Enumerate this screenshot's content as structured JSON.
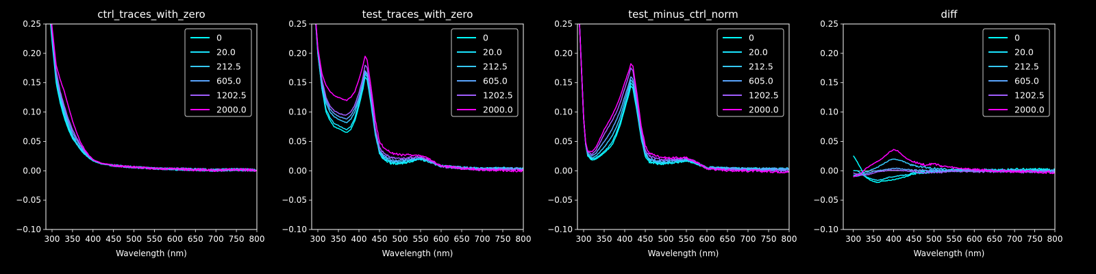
{
  "figure": {
    "background": "#000000",
    "foreground": "#ffffff"
  },
  "chart_data": [
    {
      "type": "line",
      "title": "ctrl_traces_with_zero",
      "xlabel": "Wavelength (nm)",
      "ylabel": "",
      "xlim": [
        285,
        800
      ],
      "ylim": [
        -0.1,
        0.25
      ],
      "xticks": [
        "300",
        "350",
        "400",
        "450",
        "500",
        "550",
        "600",
        "650",
        "700",
        "750",
        "800"
      ],
      "yticks": [
        "−0.10",
        "−0.05",
        "0.00",
        "0.05",
        "0.10",
        "0.15",
        "0.20",
        "0.25"
      ],
      "legend_position": "top-right",
      "x": [
        285,
        300,
        310,
        320,
        330,
        340,
        350,
        360,
        370,
        380,
        390,
        400,
        420,
        450,
        500,
        550,
        600,
        650,
        700,
        750,
        800
      ],
      "series": [
        {
          "name": "0",
          "color": "#00ffff",
          "values": [
            0.35,
            0.22,
            0.15,
            0.115,
            0.09,
            0.07,
            0.055,
            0.045,
            0.035,
            0.028,
            0.022,
            0.017,
            0.012,
            0.009,
            0.006,
            0.004,
            0.003,
            0.002,
            0.001,
            0.002,
            0.001
          ]
        },
        {
          "name": "20.0",
          "color": "#1ae5ff",
          "values": [
            0.35,
            0.225,
            0.155,
            0.12,
            0.095,
            0.073,
            0.057,
            0.046,
            0.036,
            0.029,
            0.022,
            0.017,
            0.012,
            0.009,
            0.006,
            0.004,
            0.003,
            0.002,
            0.001,
            0.002,
            0.001
          ]
        },
        {
          "name": "212.5",
          "color": "#36c9ff",
          "values": [
            0.35,
            0.23,
            0.16,
            0.125,
            0.1,
            0.078,
            0.06,
            0.048,
            0.038,
            0.03,
            0.023,
            0.018,
            0.012,
            0.009,
            0.006,
            0.004,
            0.003,
            0.002,
            0.001,
            0.002,
            0.001
          ]
        },
        {
          "name": "605.0",
          "color": "#5aa5ff",
          "values": [
            0.35,
            0.235,
            0.165,
            0.13,
            0.105,
            0.083,
            0.065,
            0.052,
            0.041,
            0.032,
            0.024,
            0.018,
            0.012,
            0.009,
            0.006,
            0.004,
            0.003,
            0.002,
            0.001,
            0.002,
            0.001
          ]
        },
        {
          "name": "1202.5",
          "color": "#a15eff",
          "values": [
            0.35,
            0.24,
            0.17,
            0.135,
            0.11,
            0.088,
            0.07,
            0.056,
            0.044,
            0.034,
            0.025,
            0.019,
            0.013,
            0.009,
            0.006,
            0.004,
            0.003,
            0.002,
            0.001,
            0.002,
            0.001
          ]
        },
        {
          "name": "2000.0",
          "color": "#ff00ff",
          "values": [
            0.35,
            0.245,
            0.18,
            0.155,
            0.135,
            0.11,
            0.085,
            0.065,
            0.048,
            0.036,
            0.026,
            0.019,
            0.013,
            0.009,
            0.006,
            0.004,
            0.003,
            0.002,
            0.001,
            0.002,
            0.001
          ]
        }
      ]
    },
    {
      "type": "line",
      "title": "test_traces_with_zero",
      "xlabel": "Wavelength (nm)",
      "ylabel": "",
      "xlim": [
        285,
        800
      ],
      "ylim": [
        -0.1,
        0.25
      ],
      "xticks": [
        "300",
        "350",
        "400",
        "450",
        "500",
        "550",
        "600",
        "650",
        "700",
        "750",
        "800"
      ],
      "yticks": [
        "−0.10",
        "−0.05",
        "0.00",
        "0.05",
        "0.10",
        "0.15",
        "0.20",
        "0.25"
      ],
      "legend_position": "top-right",
      "x": [
        290,
        300,
        310,
        320,
        330,
        340,
        350,
        360,
        370,
        380,
        390,
        400,
        410,
        415,
        420,
        430,
        440,
        450,
        460,
        480,
        500,
        520,
        550,
        570,
        600,
        650,
        700,
        750,
        800
      ],
      "series": [
        {
          "name": "0",
          "color": "#00ffff",
          "values": [
            0.3,
            0.2,
            0.14,
            0.1,
            0.085,
            0.075,
            0.072,
            0.068,
            0.065,
            0.07,
            0.085,
            0.11,
            0.14,
            0.16,
            0.155,
            0.11,
            0.06,
            0.03,
            0.02,
            0.012,
            0.012,
            0.015,
            0.02,
            0.015,
            0.008,
            0.005,
            0.003,
            0.004,
            0.003
          ]
        },
        {
          "name": "20.0",
          "color": "#1ae5ff",
          "values": [
            0.3,
            0.2,
            0.14,
            0.105,
            0.09,
            0.08,
            0.077,
            0.073,
            0.07,
            0.075,
            0.09,
            0.115,
            0.145,
            0.165,
            0.16,
            0.115,
            0.063,
            0.032,
            0.022,
            0.014,
            0.013,
            0.016,
            0.021,
            0.016,
            0.008,
            0.005,
            0.003,
            0.004,
            0.003
          ]
        },
        {
          "name": "212.5",
          "color": "#36c9ff",
          "values": [
            0.3,
            0.205,
            0.145,
            0.115,
            0.1,
            0.092,
            0.088,
            0.084,
            0.082,
            0.088,
            0.1,
            0.12,
            0.148,
            0.168,
            0.163,
            0.118,
            0.066,
            0.034,
            0.024,
            0.016,
            0.015,
            0.018,
            0.022,
            0.017,
            0.008,
            0.005,
            0.003,
            0.004,
            0.003
          ]
        },
        {
          "name": "605.0",
          "color": "#5aa5ff",
          "values": [
            0.3,
            0.205,
            0.15,
            0.12,
            0.105,
            0.097,
            0.093,
            0.09,
            0.088,
            0.094,
            0.106,
            0.125,
            0.152,
            0.17,
            0.165,
            0.12,
            0.068,
            0.036,
            0.026,
            0.018,
            0.017,
            0.02,
            0.023,
            0.017,
            0.008,
            0.005,
            0.003,
            0.004,
            0.003
          ]
        },
        {
          "name": "1202.5",
          "color": "#a15eff",
          "values": [
            0.3,
            0.21,
            0.155,
            0.125,
            0.11,
            0.102,
            0.098,
            0.096,
            0.095,
            0.1,
            0.112,
            0.132,
            0.16,
            0.18,
            0.175,
            0.128,
            0.072,
            0.04,
            0.03,
            0.022,
            0.02,
            0.022,
            0.024,
            0.018,
            0.008,
            0.004,
            0.002,
            0.002,
            0.001
          ]
        },
        {
          "name": "2000.0",
          "color": "#ff00ff",
          "values": [
            0.3,
            0.21,
            0.165,
            0.145,
            0.135,
            0.128,
            0.125,
            0.122,
            0.12,
            0.125,
            0.135,
            0.155,
            0.18,
            0.195,
            0.188,
            0.14,
            0.085,
            0.05,
            0.04,
            0.03,
            0.027,
            0.027,
            0.026,
            0.02,
            0.008,
            0.004,
            0.002,
            0.001,
            0.0
          ]
        }
      ]
    },
    {
      "type": "line",
      "title": "test_minus_ctrl_norm",
      "xlabel": "Wavelength (nm)",
      "ylabel": "",
      "xlim": [
        285,
        800
      ],
      "ylim": [
        -0.1,
        0.25
      ],
      "xticks": [
        "300",
        "350",
        "400",
        "450",
        "500",
        "550",
        "600",
        "650",
        "700",
        "750",
        "800"
      ],
      "yticks": [
        "−0.10",
        "−0.05",
        "0.00",
        "0.05",
        "0.10",
        "0.15",
        "0.20",
        "0.25"
      ],
      "legend_position": "top-right",
      "x": [
        290,
        295,
        300,
        305,
        310,
        320,
        330,
        340,
        350,
        360,
        370,
        380,
        390,
        400,
        410,
        415,
        420,
        430,
        440,
        450,
        460,
        480,
        500,
        520,
        550,
        570,
        600,
        650,
        700,
        750,
        800
      ],
      "series": [
        {
          "name": "0",
          "color": "#00ffff",
          "values": [
            0.25,
            0.17,
            0.09,
            0.045,
            0.025,
            0.018,
            0.02,
            0.025,
            0.03,
            0.037,
            0.045,
            0.06,
            0.08,
            0.105,
            0.13,
            0.145,
            0.14,
            0.1,
            0.055,
            0.025,
            0.015,
            0.012,
            0.012,
            0.013,
            0.017,
            0.013,
            0.005,
            0.004,
            0.003,
            0.003,
            0.003
          ]
        },
        {
          "name": "20.0",
          "color": "#1ae5ff",
          "values": [
            0.25,
            0.17,
            0.09,
            0.045,
            0.027,
            0.02,
            0.022,
            0.027,
            0.033,
            0.04,
            0.05,
            0.065,
            0.085,
            0.11,
            0.135,
            0.15,
            0.145,
            0.105,
            0.058,
            0.027,
            0.017,
            0.013,
            0.013,
            0.014,
            0.018,
            0.014,
            0.005,
            0.004,
            0.003,
            0.003,
            0.003
          ]
        },
        {
          "name": "212.5",
          "color": "#36c9ff",
          "values": [
            0.25,
            0.17,
            0.09,
            0.045,
            0.028,
            0.022,
            0.025,
            0.032,
            0.04,
            0.05,
            0.06,
            0.075,
            0.093,
            0.118,
            0.142,
            0.155,
            0.15,
            0.108,
            0.06,
            0.029,
            0.019,
            0.015,
            0.015,
            0.016,
            0.019,
            0.015,
            0.005,
            0.004,
            0.003,
            0.003,
            0.003
          ]
        },
        {
          "name": "605.0",
          "color": "#5aa5ff",
          "values": [
            0.25,
            0.17,
            0.09,
            0.046,
            0.03,
            0.025,
            0.03,
            0.04,
            0.05,
            0.06,
            0.072,
            0.087,
            0.104,
            0.126,
            0.148,
            0.16,
            0.155,
            0.112,
            0.063,
            0.031,
            0.021,
            0.017,
            0.017,
            0.018,
            0.02,
            0.016,
            0.005,
            0.004,
            0.003,
            0.003,
            0.003
          ]
        },
        {
          "name": "1202.5",
          "color": "#a15eff",
          "values": [
            0.25,
            0.17,
            0.09,
            0.047,
            0.032,
            0.028,
            0.035,
            0.048,
            0.062,
            0.074,
            0.086,
            0.1,
            0.118,
            0.14,
            0.162,
            0.175,
            0.17,
            0.122,
            0.07,
            0.036,
            0.025,
            0.02,
            0.019,
            0.019,
            0.021,
            0.016,
            0.004,
            0.002,
            0.001,
            0.0,
            -0.001
          ]
        },
        {
          "name": "2000.0",
          "color": "#ff00ff",
          "values": [
            0.25,
            0.17,
            0.09,
            0.048,
            0.034,
            0.032,
            0.04,
            0.055,
            0.07,
            0.082,
            0.095,
            0.11,
            0.128,
            0.15,
            0.17,
            0.182,
            0.178,
            0.13,
            0.077,
            0.042,
            0.03,
            0.025,
            0.022,
            0.022,
            0.022,
            0.016,
            0.004,
            0.001,
            0.0,
            -0.001,
            -0.002
          ]
        }
      ]
    },
    {
      "type": "line",
      "title": "diff",
      "xlabel": "Wavelength (nm)",
      "ylabel": "",
      "xlim": [
        275,
        800
      ],
      "ylim": [
        -0.1,
        0.25
      ],
      "xticks": [
        "300",
        "350",
        "400",
        "450",
        "500",
        "550",
        "600",
        "650",
        "700",
        "750",
        "800"
      ],
      "yticks": [
        "−0.10",
        "−0.05",
        "0.00",
        "0.05",
        "0.10",
        "0.15",
        "0.20",
        "0.25"
      ],
      "legend_position": "top-right",
      "x": [
        300,
        310,
        320,
        330,
        340,
        350,
        360,
        370,
        380,
        390,
        400,
        410,
        420,
        430,
        440,
        450,
        460,
        480,
        500,
        520,
        550,
        600,
        650,
        700,
        750,
        800
      ],
      "series": [
        {
          "name": "0",
          "color": "#00ffff",
          "values": [
            0.025,
            0.015,
            0.002,
            -0.01,
            -0.015,
            -0.018,
            -0.02,
            -0.018,
            -0.017,
            -0.016,
            -0.015,
            -0.014,
            -0.012,
            -0.01,
            -0.008,
            -0.005,
            -0.004,
            -0.003,
            -0.002,
            -0.001,
            0.0,
            0.001,
            0.001,
            0.002,
            0.002,
            0.002
          ]
        },
        {
          "name": "20.0",
          "color": "#1ae5ff",
          "values": [
            0.0,
            0.0,
            -0.005,
            -0.01,
            -0.013,
            -0.015,
            -0.016,
            -0.015,
            -0.013,
            -0.011,
            -0.01,
            -0.009,
            -0.008,
            -0.007,
            -0.006,
            -0.004,
            -0.003,
            -0.002,
            -0.001,
            0.0,
            0.0,
            0.001,
            0.001,
            0.001,
            0.001,
            0.001
          ]
        },
        {
          "name": "212.5",
          "color": "#36c9ff",
          "values": [
            -0.008,
            -0.006,
            -0.004,
            -0.002,
            0.0,
            0.003,
            0.006,
            0.01,
            0.014,
            0.018,
            0.02,
            0.019,
            0.017,
            0.014,
            0.011,
            0.009,
            0.008,
            0.006,
            0.004,
            0.003,
            0.002,
            0.001,
            0.0,
            0.0,
            0.0,
            0.0
          ]
        },
        {
          "name": "605.0",
          "color": "#5aa5ff",
          "values": [
            -0.01,
            -0.009,
            -0.007,
            -0.005,
            -0.003,
            -0.001,
            0.0,
            0.001,
            0.002,
            0.003,
            0.004,
            0.004,
            0.003,
            0.002,
            0.002,
            0.001,
            0.001,
            0.001,
            0.0,
            0.0,
            0.0,
            0.0,
            0.0,
            0.0,
            0.0,
            0.0
          ]
        },
        {
          "name": "1202.5",
          "color": "#a15eff",
          "values": [
            -0.004,
            -0.006,
            -0.007,
            -0.007,
            -0.006,
            -0.004,
            -0.002,
            -0.001,
            0.0,
            0.001,
            0.001,
            0.001,
            0.0,
            0.0,
            -0.001,
            -0.001,
            -0.002,
            -0.003,
            -0.003,
            -0.002,
            -0.001,
            -0.001,
            -0.001,
            -0.002,
            -0.002,
            -0.002
          ]
        },
        {
          "name": "2000.0",
          "color": "#ff00ff",
          "values": [
            -0.01,
            -0.008,
            -0.004,
            0.003,
            0.008,
            0.012,
            0.016,
            0.02,
            0.026,
            0.032,
            0.036,
            0.034,
            0.028,
            0.022,
            0.018,
            0.015,
            0.013,
            0.01,
            0.012,
            0.008,
            0.005,
            0.002,
            0.0,
            -0.001,
            -0.002,
            -0.003
          ]
        }
      ]
    }
  ]
}
